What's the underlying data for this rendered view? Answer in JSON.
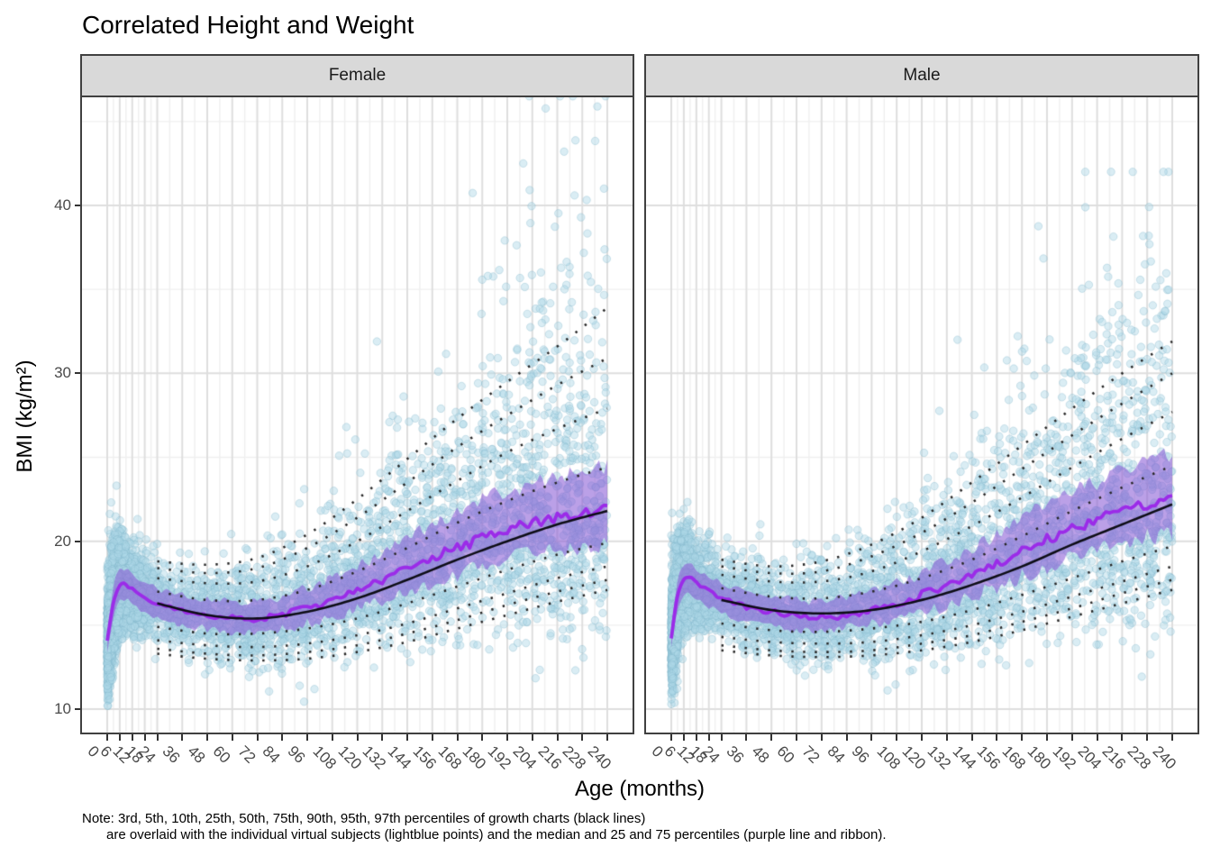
{
  "title": "Correlated Height and Weight",
  "facets": [
    {
      "label": "Female"
    },
    {
      "label": "Male"
    }
  ],
  "x_axis": {
    "title": "Age (months)",
    "tick_labels": [
      0,
      6,
      12,
      18,
      24,
      36,
      48,
      60,
      72,
      84,
      96,
      108,
      120,
      132,
      144,
      156,
      168,
      180,
      192,
      204,
      216,
      228,
      240
    ]
  },
  "y_axis": {
    "title": "BMI (kg/m²)",
    "tick_labels": [
      10,
      20,
      30,
      40
    ]
  },
  "note": {
    "line1": "Note: 3rd, 5th, 10th, 25th, 50th, 75th, 90th, 95th, 97th percentiles of growth charts (black lines)",
    "line2": "are overlaid with the individual virtual subjects (lightblue points) and the median and 25 and 75 percentiles (purple line and ribbon)."
  },
  "chart_data": {
    "type": "scatter",
    "title": "Correlated Height and Weight",
    "xlabel": "Age (months)",
    "ylabel": "BMI (kg/m²)",
    "facet_labels": [
      "Female",
      "Male"
    ],
    "x_range": [
      0,
      240
    ],
    "y_range": [
      8.6,
      46.3
    ],
    "x_breaks": [
      0,
      6,
      12,
      18,
      24,
      36,
      48,
      60,
      72,
      84,
      96,
      108,
      120,
      132,
      144,
      156,
      168,
      180,
      192,
      204,
      216,
      228,
      240
    ],
    "y_breaks": [
      10,
      20,
      30,
      40
    ],
    "y_minor_breaks": [
      15,
      25,
      35,
      45
    ],
    "grid": true,
    "legend": "none",
    "percentiles_shown": [
      "3rd",
      "5th",
      "10th",
      "25th",
      "50th",
      "75th",
      "90th",
      "95th",
      "97th"
    ],
    "growth_chart_ages_months": [
      24,
      48,
      72,
      96,
      120,
      144,
      168,
      192,
      216,
      240
    ],
    "growth_percentiles": {
      "Female": {
        "p3": [
          13.3,
          13.0,
          12.9,
          13.0,
          13.4,
          14.0,
          14.8,
          15.6,
          16.4,
          17.1
        ],
        "p5": [
          13.6,
          13.3,
          13.2,
          13.4,
          13.8,
          14.5,
          15.3,
          16.2,
          17.0,
          17.7
        ],
        "p10": [
          14.1,
          13.8,
          13.7,
          13.9,
          14.4,
          15.1,
          16.0,
          16.9,
          17.8,
          18.5
        ],
        "p25": [
          14.9,
          14.5,
          14.5,
          14.8,
          15.4,
          16.3,
          17.3,
          18.3,
          19.2,
          19.9
        ],
        "p50": [
          16.3,
          15.6,
          15.4,
          15.8,
          16.6,
          17.7,
          18.9,
          20.0,
          21.0,
          21.8
        ],
        "p75": [
          17.0,
          16.5,
          16.5,
          17.1,
          18.2,
          19.6,
          21.1,
          22.4,
          23.5,
          24.4
        ],
        "p90": [
          17.8,
          17.5,
          17.6,
          18.5,
          20.0,
          21.8,
          23.6,
          25.3,
          26.7,
          27.9
        ],
        "p95": [
          18.4,
          18.1,
          18.4,
          19.6,
          21.4,
          23.5,
          25.6,
          27.5,
          29.3,
          30.9
        ],
        "p97": [
          18.8,
          18.6,
          19.0,
          20.4,
          22.5,
          24.9,
          27.3,
          29.5,
          31.6,
          33.9
        ]
      },
      "Male": {
        "p3": [
          13.5,
          13.2,
          13.1,
          13.2,
          13.5,
          14.0,
          14.7,
          15.5,
          16.3,
          17.1
        ],
        "p5": [
          13.8,
          13.5,
          13.4,
          13.5,
          13.9,
          14.4,
          15.2,
          16.0,
          16.9,
          17.7
        ],
        "p10": [
          14.3,
          14.0,
          13.9,
          14.0,
          14.4,
          15.0,
          15.8,
          16.7,
          17.6,
          18.5
        ],
        "p25": [
          15.1,
          14.7,
          14.6,
          14.8,
          15.2,
          15.9,
          16.8,
          17.8,
          18.8,
          19.7
        ],
        "p50": [
          16.5,
          15.9,
          15.7,
          15.9,
          16.5,
          17.4,
          18.5,
          19.8,
          21.0,
          22.2
        ],
        "p75": [
          17.2,
          16.7,
          16.6,
          17.0,
          17.8,
          18.9,
          20.3,
          21.8,
          23.2,
          24.5
        ],
        "p90": [
          18.0,
          17.6,
          17.6,
          18.2,
          19.4,
          20.9,
          22.6,
          24.4,
          26.1,
          27.7
        ],
        "p95": [
          18.5,
          18.1,
          18.2,
          19.1,
          20.5,
          22.3,
          24.3,
          26.3,
          28.2,
          30.0
        ],
        "p97": [
          18.9,
          18.5,
          18.8,
          19.8,
          21.4,
          23.5,
          25.7,
          27.9,
          30.0,
          31.9
        ]
      }
    },
    "subject_summary_ages_months": [
      0,
      3,
      6,
      9,
      12,
      18,
      24,
      36,
      48,
      60,
      72,
      84,
      96,
      108,
      120,
      132,
      144,
      156,
      168,
      180,
      192,
      204,
      216,
      228,
      240
    ],
    "subject_percentiles": {
      "Female": {
        "p25": [
          13.5,
          15.5,
          16.4,
          16.5,
          16.2,
          15.8,
          15.4,
          15.0,
          14.8,
          14.6,
          14.6,
          14.8,
          15.1,
          15.5,
          16.0,
          16.5,
          17.0,
          17.5,
          18.0,
          18.5,
          18.9,
          19.2,
          19.5,
          19.7,
          19.9
        ],
        "p50": [
          14.0,
          16.4,
          17.3,
          17.4,
          17.1,
          16.7,
          16.3,
          15.9,
          15.6,
          15.4,
          15.4,
          15.6,
          16.0,
          16.5,
          17.1,
          17.7,
          18.4,
          19.0,
          19.6,
          20.2,
          20.7,
          21.1,
          21.4,
          21.6,
          21.8
        ],
        "p75": [
          14.6,
          17.3,
          18.2,
          18.3,
          18.0,
          17.6,
          17.2,
          16.8,
          16.5,
          16.4,
          16.4,
          16.7,
          17.2,
          17.8,
          18.5,
          19.3,
          20.1,
          20.9,
          21.7,
          22.4,
          23.0,
          23.5,
          23.9,
          24.2,
          24.5
        ]
      },
      "Male": {
        "p25": [
          13.8,
          15.9,
          16.8,
          16.9,
          16.6,
          16.1,
          15.7,
          15.2,
          14.9,
          14.7,
          14.7,
          14.8,
          15.0,
          15.3,
          15.7,
          16.2,
          16.7,
          17.3,
          17.9,
          18.5,
          19.0,
          19.5,
          19.9,
          20.3,
          20.6
        ],
        "p50": [
          14.3,
          16.8,
          17.7,
          17.8,
          17.5,
          17.0,
          16.6,
          16.1,
          15.8,
          15.6,
          15.5,
          15.6,
          15.9,
          16.3,
          16.8,
          17.4,
          18.0,
          18.7,
          19.4,
          20.1,
          20.7,
          21.3,
          21.8,
          22.3,
          22.7
        ],
        "p75": [
          14.9,
          17.7,
          18.6,
          18.7,
          18.4,
          17.9,
          17.5,
          17.0,
          16.7,
          16.5,
          16.5,
          16.7,
          17.0,
          17.5,
          18.1,
          18.8,
          19.6,
          20.4,
          21.3,
          22.1,
          22.9,
          23.6,
          24.2,
          24.7,
          25.1
        ]
      }
    },
    "scatter_points": {
      "description": "individual virtual subjects",
      "n_per_facet": 5200,
      "seed": 7,
      "facet_params": [
        {
          "label": "Female",
          "bmi_cap": 46.5,
          "upper_skew": 0.95
        },
        {
          "label": "Male",
          "bmi_cap": 42.0,
          "upper_skew": 0.8
        }
      ]
    },
    "colors": {
      "points": "#ADD8E6",
      "ribbon": "rgba(138,92,214,0.58)",
      "median_line": "#9B2BE8",
      "growth_lines": "#262626",
      "growth_median_line": "#0d0d16",
      "strip_bg": "#D9D9D9",
      "panel_border": "#404040",
      "grid_major": "#dedede",
      "grid_minor": "#efefef"
    }
  }
}
